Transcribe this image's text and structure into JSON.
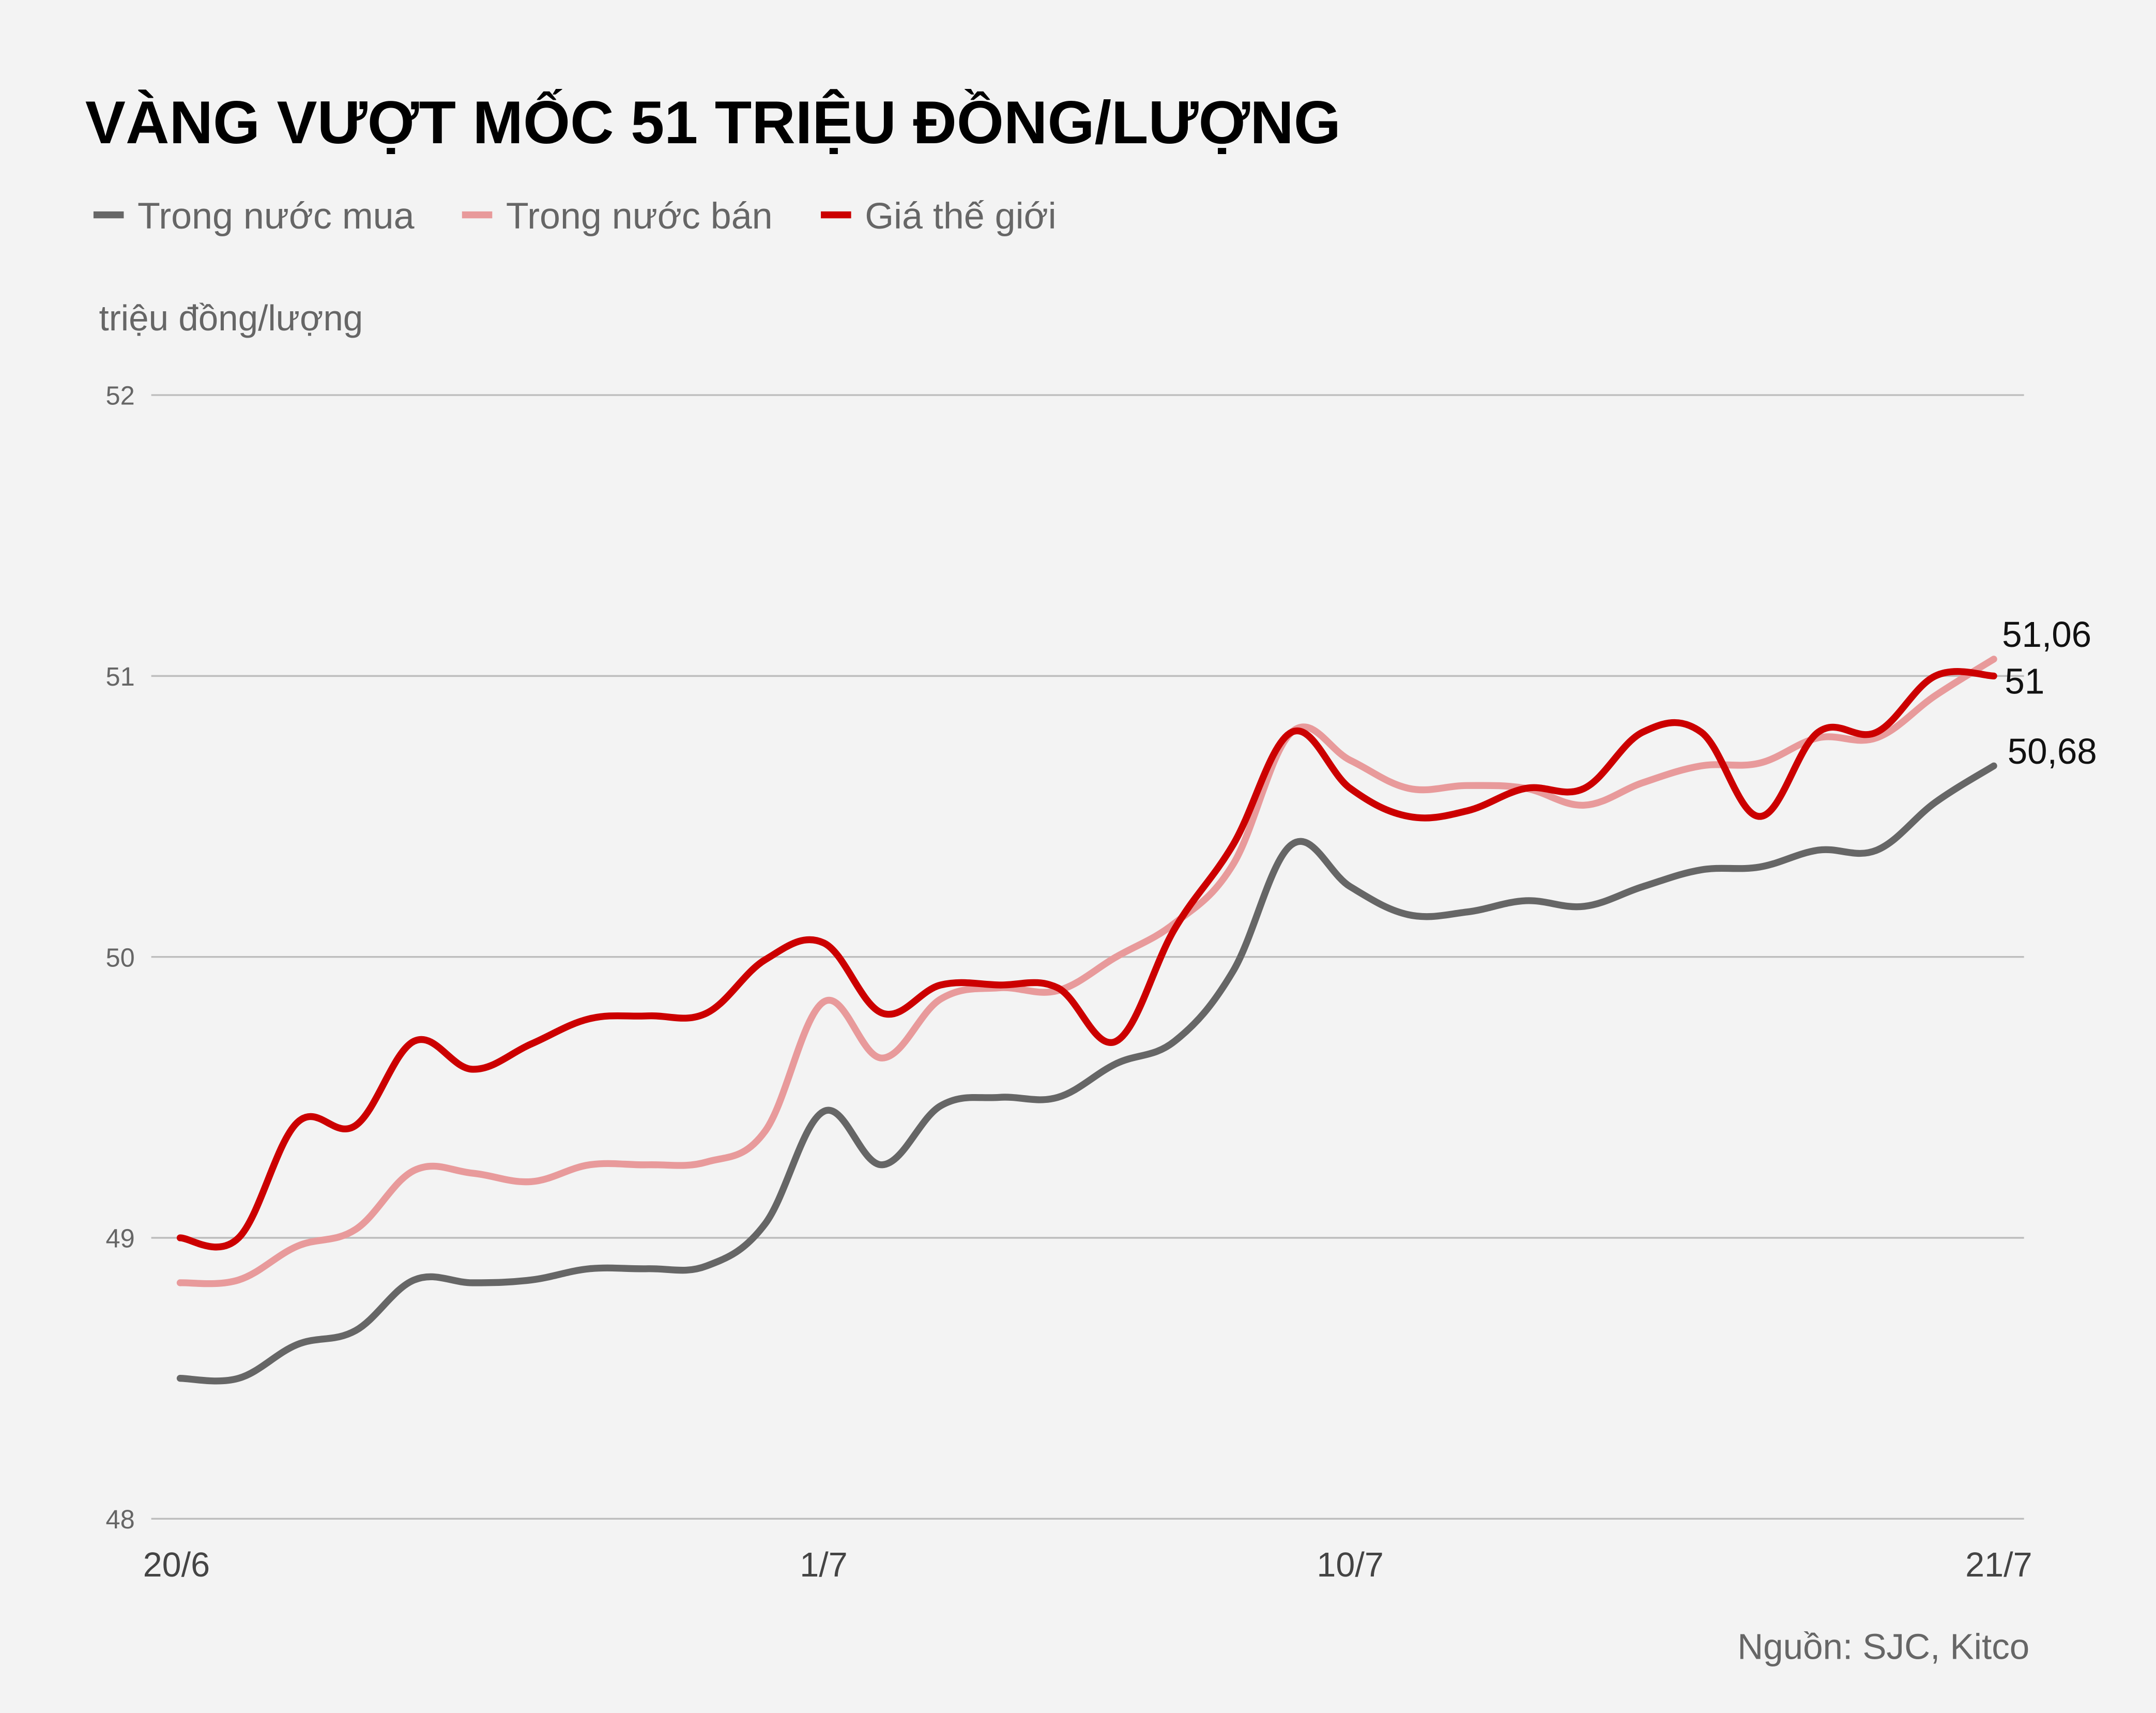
{
  "chart_data": {
    "type": "line",
    "title": "VÀNG VƯỢT MỐC 51 TRIỆU ĐỒNG/LƯỢNG",
    "ylabel": "triệu đồng/lượng",
    "xlabel": "",
    "source": "Nguồn: SJC, Kitco",
    "ylim": [
      48,
      52
    ],
    "yticks": [
      "48",
      "49",
      "50",
      "51",
      "52"
    ],
    "grid": true,
    "legend_position": "top-left",
    "x": [
      "20/6",
      "21/6",
      "22/6",
      "23/6",
      "24/6",
      "25/6",
      "26/6",
      "27/6",
      "28/6",
      "29/6",
      "30/6",
      "1/7",
      "2/7",
      "3/7",
      "4/7",
      "5/7",
      "6/7",
      "7/7",
      "8/7",
      "9/7",
      "10/7",
      "11/7",
      "12/7",
      "13/7",
      "14/7",
      "15/7",
      "16/7",
      "17/7",
      "18/7",
      "19/7",
      "20/7",
      "21/7"
    ],
    "xticks": [
      "20/6",
      "1/7",
      "10/7",
      "21/7"
    ],
    "series": [
      {
        "name": "Trong nước mua",
        "color": "#666666",
        "end_label": "50,68",
        "values": [
          48.5,
          48.5,
          48.62,
          48.67,
          48.85,
          48.84,
          48.85,
          48.89,
          48.89,
          48.9,
          49.05,
          49.45,
          49.26,
          49.47,
          49.5,
          49.5,
          49.62,
          49.7,
          49.95,
          50.4,
          50.25,
          50.15,
          50.16,
          50.2,
          50.18,
          50.25,
          50.31,
          50.32,
          50.38,
          50.38,
          50.55,
          50.68
        ]
      },
      {
        "name": "Trong nước bán",
        "color": "#e89a9b",
        "end_label": "51,06",
        "values": [
          48.84,
          48.85,
          48.97,
          49.03,
          49.24,
          49.23,
          49.2,
          49.26,
          49.26,
          49.27,
          49.38,
          49.84,
          49.64,
          49.85,
          49.89,
          49.88,
          50.0,
          50.12,
          50.33,
          50.8,
          50.7,
          50.6,
          50.61,
          50.6,
          50.54,
          50.62,
          50.68,
          50.69,
          50.78,
          50.78,
          50.93,
          51.06
        ]
      },
      {
        "name": "Giá thế giới",
        "color": "#cc0000",
        "end_label": "51",
        "values": [
          49.0,
          49.0,
          49.41,
          49.4,
          49.7,
          49.6,
          49.69,
          49.78,
          49.79,
          49.8,
          49.99,
          50.05,
          49.8,
          49.9,
          49.9,
          49.89,
          49.7,
          50.1,
          50.4,
          50.8,
          50.6,
          50.5,
          50.52,
          50.6,
          50.6,
          50.8,
          50.8,
          50.5,
          50.8,
          50.8,
          51.0,
          51.0
        ]
      }
    ]
  }
}
